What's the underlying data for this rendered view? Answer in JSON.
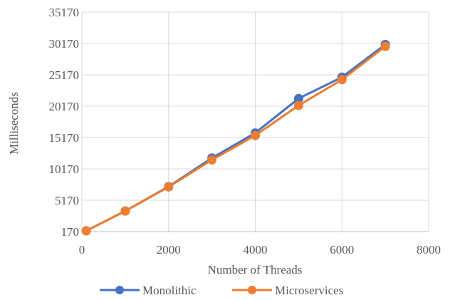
{
  "chart_data": {
    "type": "line",
    "title": "",
    "xlabel": "Number of Threads",
    "ylabel": "Milliseconds",
    "xlim": [
      0,
      8000
    ],
    "ylim": [
      170,
      35170
    ],
    "x_ticks": [
      "0",
      "2000",
      "4000",
      "6000",
      "8000"
    ],
    "y_ticks": [
      "170",
      "5170",
      "10170",
      "15170",
      "20170",
      "25170",
      "30170",
      "35170"
    ],
    "grid": true,
    "legend_position": "bottom",
    "series": [
      {
        "name": "Monolithic",
        "color": "#4472C4",
        "x": [
          100,
          1000,
          2000,
          3000,
          4000,
          5000,
          6000,
          7000
        ],
        "y": [
          300,
          3450,
          7350,
          11900,
          15900,
          21400,
          24800,
          30000
        ]
      },
      {
        "name": "Microservices",
        "color": "#ED7D31",
        "x": [
          100,
          1000,
          2000,
          3000,
          4000,
          5000,
          6000,
          7000
        ],
        "y": [
          300,
          3450,
          7300,
          11600,
          15500,
          20300,
          24400,
          29700
        ]
      }
    ]
  }
}
